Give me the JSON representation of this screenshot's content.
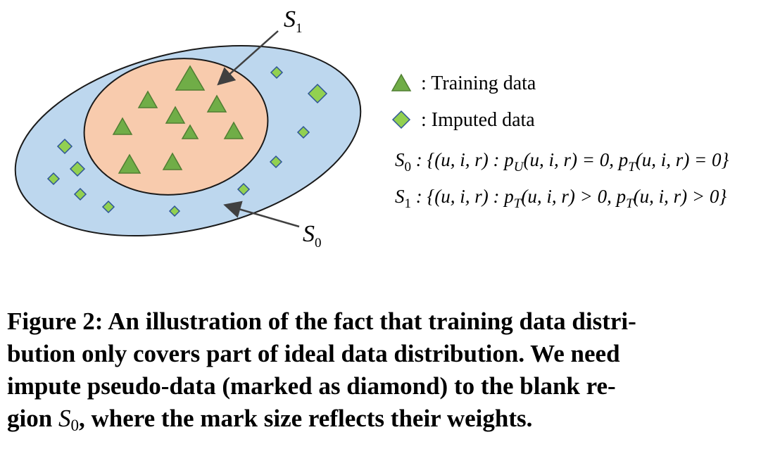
{
  "figure": {
    "labels": {
      "s1": {
        "base": "S",
        "sub": "1"
      },
      "s0": {
        "base": "S",
        "sub": "0"
      }
    },
    "legend": [
      {
        "text": ": Training data"
      },
      {
        "text": ": Imputed data"
      }
    ],
    "definitions": [
      {
        "set": "S",
        "set_sub": "0",
        "a": " : {(u, i, r) : p",
        "a_sub": "U",
        "b": "(u, i, r) = 0, p",
        "b_sub": "T",
        "c": "(u, i, r) = 0}"
      },
      {
        "set": "S",
        "set_sub": "1",
        "a": " : {(u, i, r) : p",
        "a_sub": "T",
        "b": "(u, i, r) > 0, p",
        "b_sub": "T",
        "c": "(u, i, r) > 0}"
      }
    ],
    "caption": {
      "lines": [
        "Figure 2: An illustration of the fact that training data distri-",
        "bution only covers part of ideal data distribution. We need",
        "impute pseudo-data (marked as diamond) to the blank re-"
      ],
      "last": {
        "before": "gion ",
        "math": "S",
        "math_sub": "0",
        "after": ", where the mark size reflects their weights."
      }
    }
  }
}
